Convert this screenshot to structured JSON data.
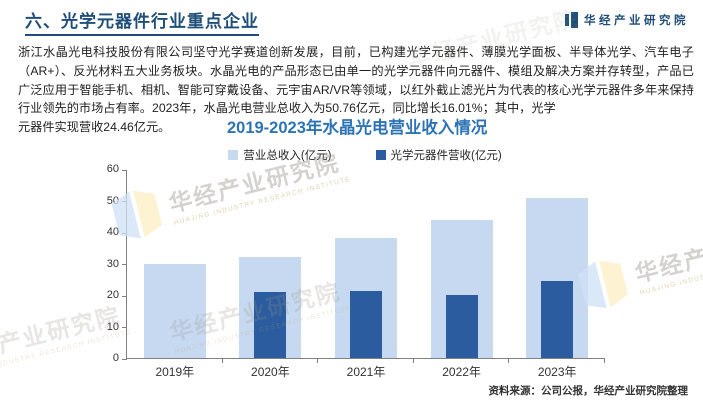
{
  "header": {
    "title": "六、光学元器件行业重点企业",
    "logo_text": "华经产业研究院"
  },
  "body": {
    "paragraph": "浙江水晶光电科技股份有限公司坚守光学赛道创新发展，目前，已构建光学元器件、薄膜光学面板、半导体光学、汽车电子（AR+）、反光材料五大业务板块。水晶光电的产品形态已由单一的光学元器件向元器件、模组及解决方案并存转型，产品已广泛应用于智能手机、相机、智能可穿戴设备、元宇宙AR/VR等领域，以红外截止滤光片为代表的核心光学元器件多年来保持行业领先的市场占有率。2023年，水晶光电营业总收入为50.76亿元，同比增长16.01%；其中，光学",
    "paragraph_end": "元器件实现营收24.46亿元。"
  },
  "chart": {
    "source": "资料来源：公司公报，华经产业研究院整理"
  },
  "chart_data": {
    "type": "bar",
    "title": "2019-2023年水晶光电营业收入情况",
    "categories": [
      "2019年",
      "2020年",
      "2021年",
      "2022年",
      "2023年"
    ],
    "series": [
      {
        "name": "营业总收入(亿元)",
        "color": "#C6D9F1",
        "values": [
          30.0,
          32.1,
          38.1,
          43.8,
          50.76
        ]
      },
      {
        "name": "光学元器件营收(亿元)",
        "color": "#2A5C9F",
        "values": [
          null,
          20.9,
          21.2,
          20.1,
          24.46
        ]
      }
    ],
    "xlabel": "",
    "ylabel": "",
    "ylim": [
      0,
      60
    ],
    "yticks": [
      0,
      10,
      20,
      30,
      40,
      50,
      60
    ],
    "legend_position": "top",
    "grid": false
  },
  "watermark": {
    "text": "华经产业研究院",
    "subtext": "HUAJING INDUSTRY RESEARCH INSTITUTE"
  },
  "colors": {
    "header_blue": "#1F4E79",
    "chart_title_blue": "#2E74B5",
    "bar_light": "#C6D9F1",
    "bar_dark": "#2A5C9F",
    "axis_gray": "#808080"
  }
}
